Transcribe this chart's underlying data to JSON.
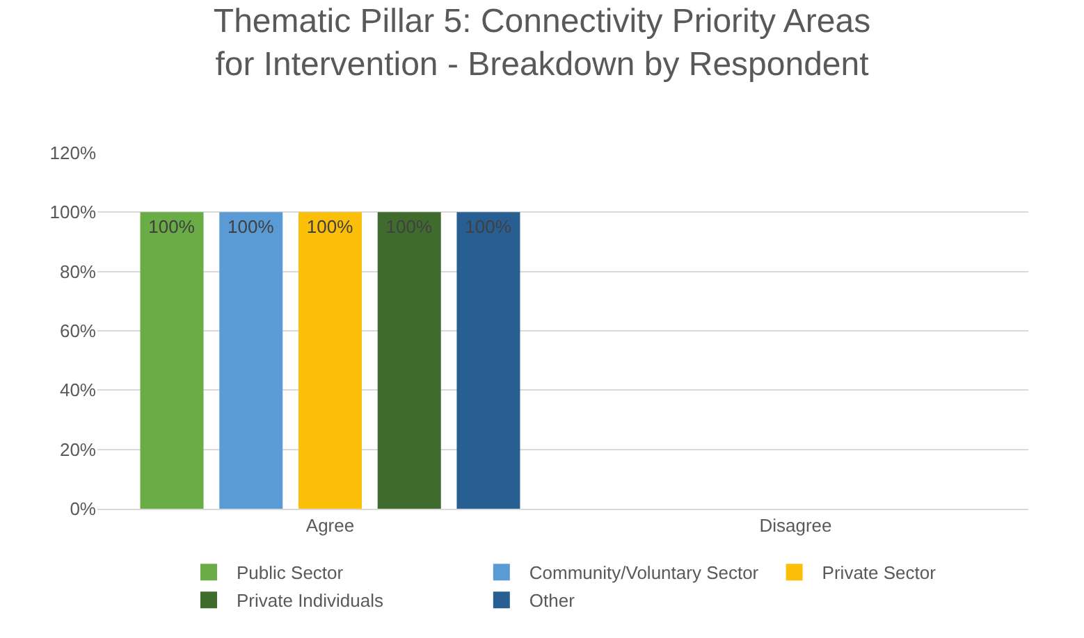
{
  "chart_data": {
    "type": "bar",
    "title": "Thematic Pillar 5: Connectivity Priority Areas for Intervention - Breakdown by Respondent",
    "categories": [
      "Agree",
      "Disagree"
    ],
    "series": [
      {
        "name": "Public Sector",
        "color": "#6aac46",
        "values": [
          100,
          0
        ],
        "value_labels": [
          "100%",
          null
        ]
      },
      {
        "name": "Community/Voluntary Sector",
        "color": "#5b9bd5",
        "values": [
          100,
          0
        ],
        "value_labels": [
          "100%",
          null
        ]
      },
      {
        "name": "Private Sector",
        "color": "#fbbf0a",
        "values": [
          100,
          0
        ],
        "value_labels": [
          "100%",
          null
        ]
      },
      {
        "name": "Private Individuals",
        "color": "#3f6b2c",
        "values": [
          100,
          0
        ],
        "value_labels": [
          "100%",
          null
        ]
      },
      {
        "name": "Other",
        "color": "#285f93",
        "values": [
          100,
          0
        ],
        "value_labels": [
          "100%",
          null
        ]
      }
    ],
    "ylim": [
      0,
      120
    ],
    "yticks": [
      {
        "value": 0,
        "label": "0%"
      },
      {
        "value": 20,
        "label": "20%"
      },
      {
        "value": 40,
        "label": "40%"
      },
      {
        "value": 60,
        "label": "60%"
      },
      {
        "value": 80,
        "label": "80%"
      },
      {
        "value": 100,
        "label": "100%"
      },
      {
        "value": 120,
        "label": "120%"
      }
    ],
    "grid": "y",
    "legend": "bottom"
  }
}
